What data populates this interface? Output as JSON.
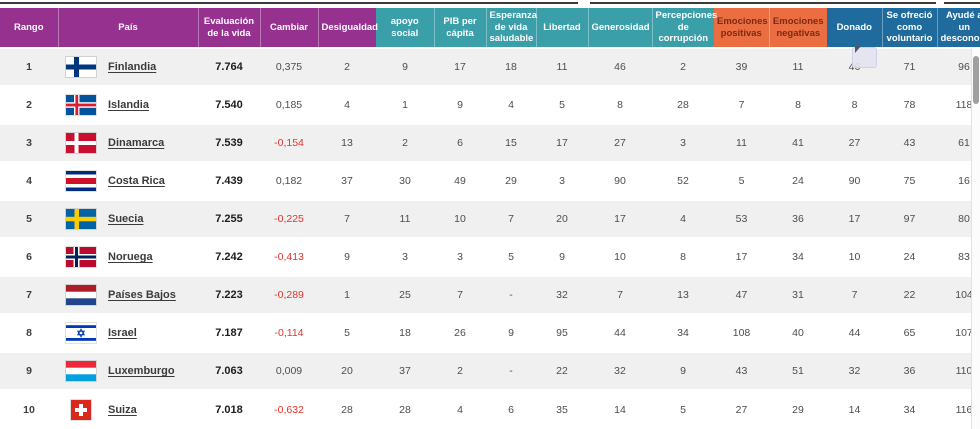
{
  "colors": {
    "header_purple": "#97318f",
    "header_teal": "#3a9fa9",
    "header_orange": "#ea6e41",
    "header_orange_text": "#7c2b10",
    "header_blue": "#1f6b9d",
    "negative_value": "#e5332a",
    "row_alt_background": "#f0f0f1"
  },
  "table": {
    "columns": [
      {
        "key": "rango",
        "label": "Rango",
        "group": "purple"
      },
      {
        "key": "pais",
        "label": "País",
        "group": "purple"
      },
      {
        "key": "evaluacion",
        "label": "Evaluación de la vida",
        "group": "purple"
      },
      {
        "key": "cambiar",
        "label": "Cambiar",
        "group": "purple"
      },
      {
        "key": "desigualdad",
        "label": "Desigualdad",
        "group": "purple"
      },
      {
        "key": "apoyo-social",
        "label": "apoyo social",
        "group": "teal"
      },
      {
        "key": "pib-per-capita",
        "label": "PIB per cápita",
        "group": "teal"
      },
      {
        "key": "esperanza-vida",
        "label": "Esperanza de vida saludable",
        "group": "teal"
      },
      {
        "key": "libertad",
        "label": "Libertad",
        "group": "teal"
      },
      {
        "key": "generosidad",
        "label": "Generosidad",
        "group": "teal"
      },
      {
        "key": "percepciones",
        "label": "Percepciones de corrupción",
        "group": "teal"
      },
      {
        "key": "emociones-positivas",
        "label": "Emociones positivas",
        "group": "orange"
      },
      {
        "key": "emociones-negativas",
        "label": "Emociones negativas",
        "group": "orange"
      },
      {
        "key": "donado",
        "label": "Donado",
        "group": "blue"
      },
      {
        "key": "voluntario",
        "label": "Se ofreció como voluntario",
        "group": "blue"
      },
      {
        "key": "ayude-desconocido",
        "label": "Ayudé a un desconocido",
        "group": "blue"
      }
    ],
    "rows": [
      {
        "rank": "1",
        "country": "Finlandia",
        "flag": "fi",
        "values": [
          "7.764",
          "0,375",
          "2",
          "9",
          "17",
          "18",
          "11",
          "46",
          "2",
          "39",
          "11",
          "46",
          "71",
          "96"
        ]
      },
      {
        "rank": "2",
        "country": "Islandia",
        "flag": "is",
        "values": [
          "7.540",
          "0,185",
          "4",
          "1",
          "9",
          "4",
          "5",
          "8",
          "28",
          "7",
          "8",
          "8",
          "78",
          "118"
        ]
      },
      {
        "rank": "3",
        "country": "Dinamarca",
        "flag": "dk",
        "values": [
          "7.539",
          "-0,154",
          "13",
          "2",
          "6",
          "15",
          "17",
          "27",
          "3",
          "11",
          "41",
          "27",
          "43",
          "61"
        ]
      },
      {
        "rank": "4",
        "country": "Costa Rica",
        "flag": "cr",
        "values": [
          "7.439",
          "0,182",
          "37",
          "30",
          "49",
          "29",
          "3",
          "90",
          "52",
          "5",
          "24",
          "90",
          "75",
          "16"
        ]
      },
      {
        "rank": "5",
        "country": "Suecia",
        "flag": "se",
        "values": [
          "7.255",
          "-0,225",
          "7",
          "11",
          "10",
          "7",
          "20",
          "17",
          "4",
          "53",
          "36",
          "17",
          "97",
          "80"
        ]
      },
      {
        "rank": "6",
        "country": "Noruega",
        "flag": "no",
        "values": [
          "7.242",
          "-0,413",
          "9",
          "3",
          "3",
          "5",
          "9",
          "10",
          "8",
          "17",
          "34",
          "10",
          "24",
          "83"
        ]
      },
      {
        "rank": "7",
        "country": "Países Bajos",
        "flag": "nl",
        "values": [
          "7.223",
          "-0,289",
          "1",
          "25",
          "7",
          "-",
          "32",
          "7",
          "13",
          "47",
          "31",
          "7",
          "22",
          "104"
        ]
      },
      {
        "rank": "8",
        "country": "Israel",
        "flag": "il",
        "values": [
          "7.187",
          "-0,114",
          "5",
          "18",
          "26",
          "9",
          "95",
          "44",
          "34",
          "108",
          "40",
          "44",
          "65",
          "107"
        ]
      },
      {
        "rank": "9",
        "country": "Luxemburgo",
        "flag": "lu",
        "values": [
          "7.063",
          "0,009",
          "20",
          "37",
          "2",
          "-",
          "22",
          "32",
          "9",
          "43",
          "51",
          "32",
          "36",
          "110"
        ]
      },
      {
        "rank": "10",
        "country": "Suiza",
        "flag": "ch",
        "values": [
          "7.018",
          "-0,632",
          "28",
          "28",
          "4",
          "6",
          "35",
          "14",
          "5",
          "27",
          "29",
          "14",
          "34",
          "116"
        ]
      }
    ]
  }
}
